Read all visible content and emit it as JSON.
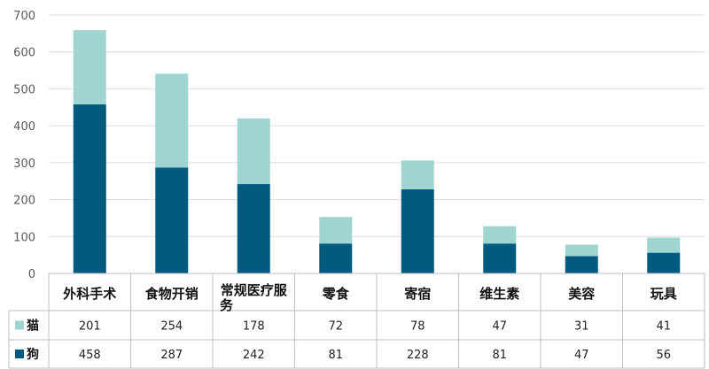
{
  "chart_data": {
    "type": "bar",
    "stacked": true,
    "categories": [
      "外科手术",
      "食物开销",
      "常规医疗服务",
      "零食",
      "寄宿",
      "维生素",
      "美容",
      "玩具"
    ],
    "series": [
      {
        "name": "猫",
        "values": [
          201,
          254,
          178,
          72,
          78,
          47,
          31,
          41
        ],
        "color": "#9fd5d1"
      },
      {
        "name": "狗",
        "values": [
          458,
          287,
          242,
          81,
          228,
          81,
          47,
          56
        ],
        "color": "#005b7f"
      }
    ],
    "ylim": [
      0,
      700
    ],
    "yticks": [
      0,
      100,
      200,
      300,
      400,
      500,
      600,
      700
    ],
    "grid": true,
    "data_table": true,
    "title": "",
    "xlabel": "",
    "ylabel": ""
  }
}
